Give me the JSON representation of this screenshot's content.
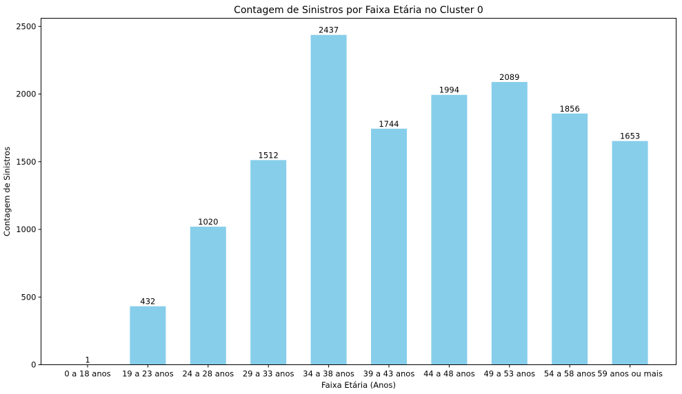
{
  "chart_data": {
    "type": "bar",
    "title": "Contagem de Sinistros por Faixa Etária no Cluster 0",
    "xlabel": "Faixa Etária (Anos)",
    "ylabel": "Contagem de Sinistros",
    "categories": [
      "0 a 18 anos",
      "19 a 23 anos",
      "24 a 28 anos",
      "29 a 33 anos",
      "34 a 38 anos",
      "39 a 43 anos",
      "44 a 48 anos",
      "49 a 53 anos",
      "54 a 58 anos",
      "59 anos ou mais"
    ],
    "values": [
      1,
      432,
      1020,
      1512,
      2437,
      1744,
      1994,
      2089,
      1856,
      1653
    ],
    "data_labels": [
      "1",
      "432",
      "1020",
      "1512",
      "2437",
      "1744",
      "1994",
      "2089",
      "1856",
      "1653"
    ],
    "yticks": [
      0,
      500,
      1000,
      1500,
      2000,
      2500
    ],
    "ytick_labels": [
      "0",
      "500",
      "1000",
      "1500",
      "2000",
      "2500"
    ],
    "ylim": [
      0,
      2560
    ],
    "bar_color": "#87ceeb",
    "grid": false,
    "legend": "none"
  }
}
